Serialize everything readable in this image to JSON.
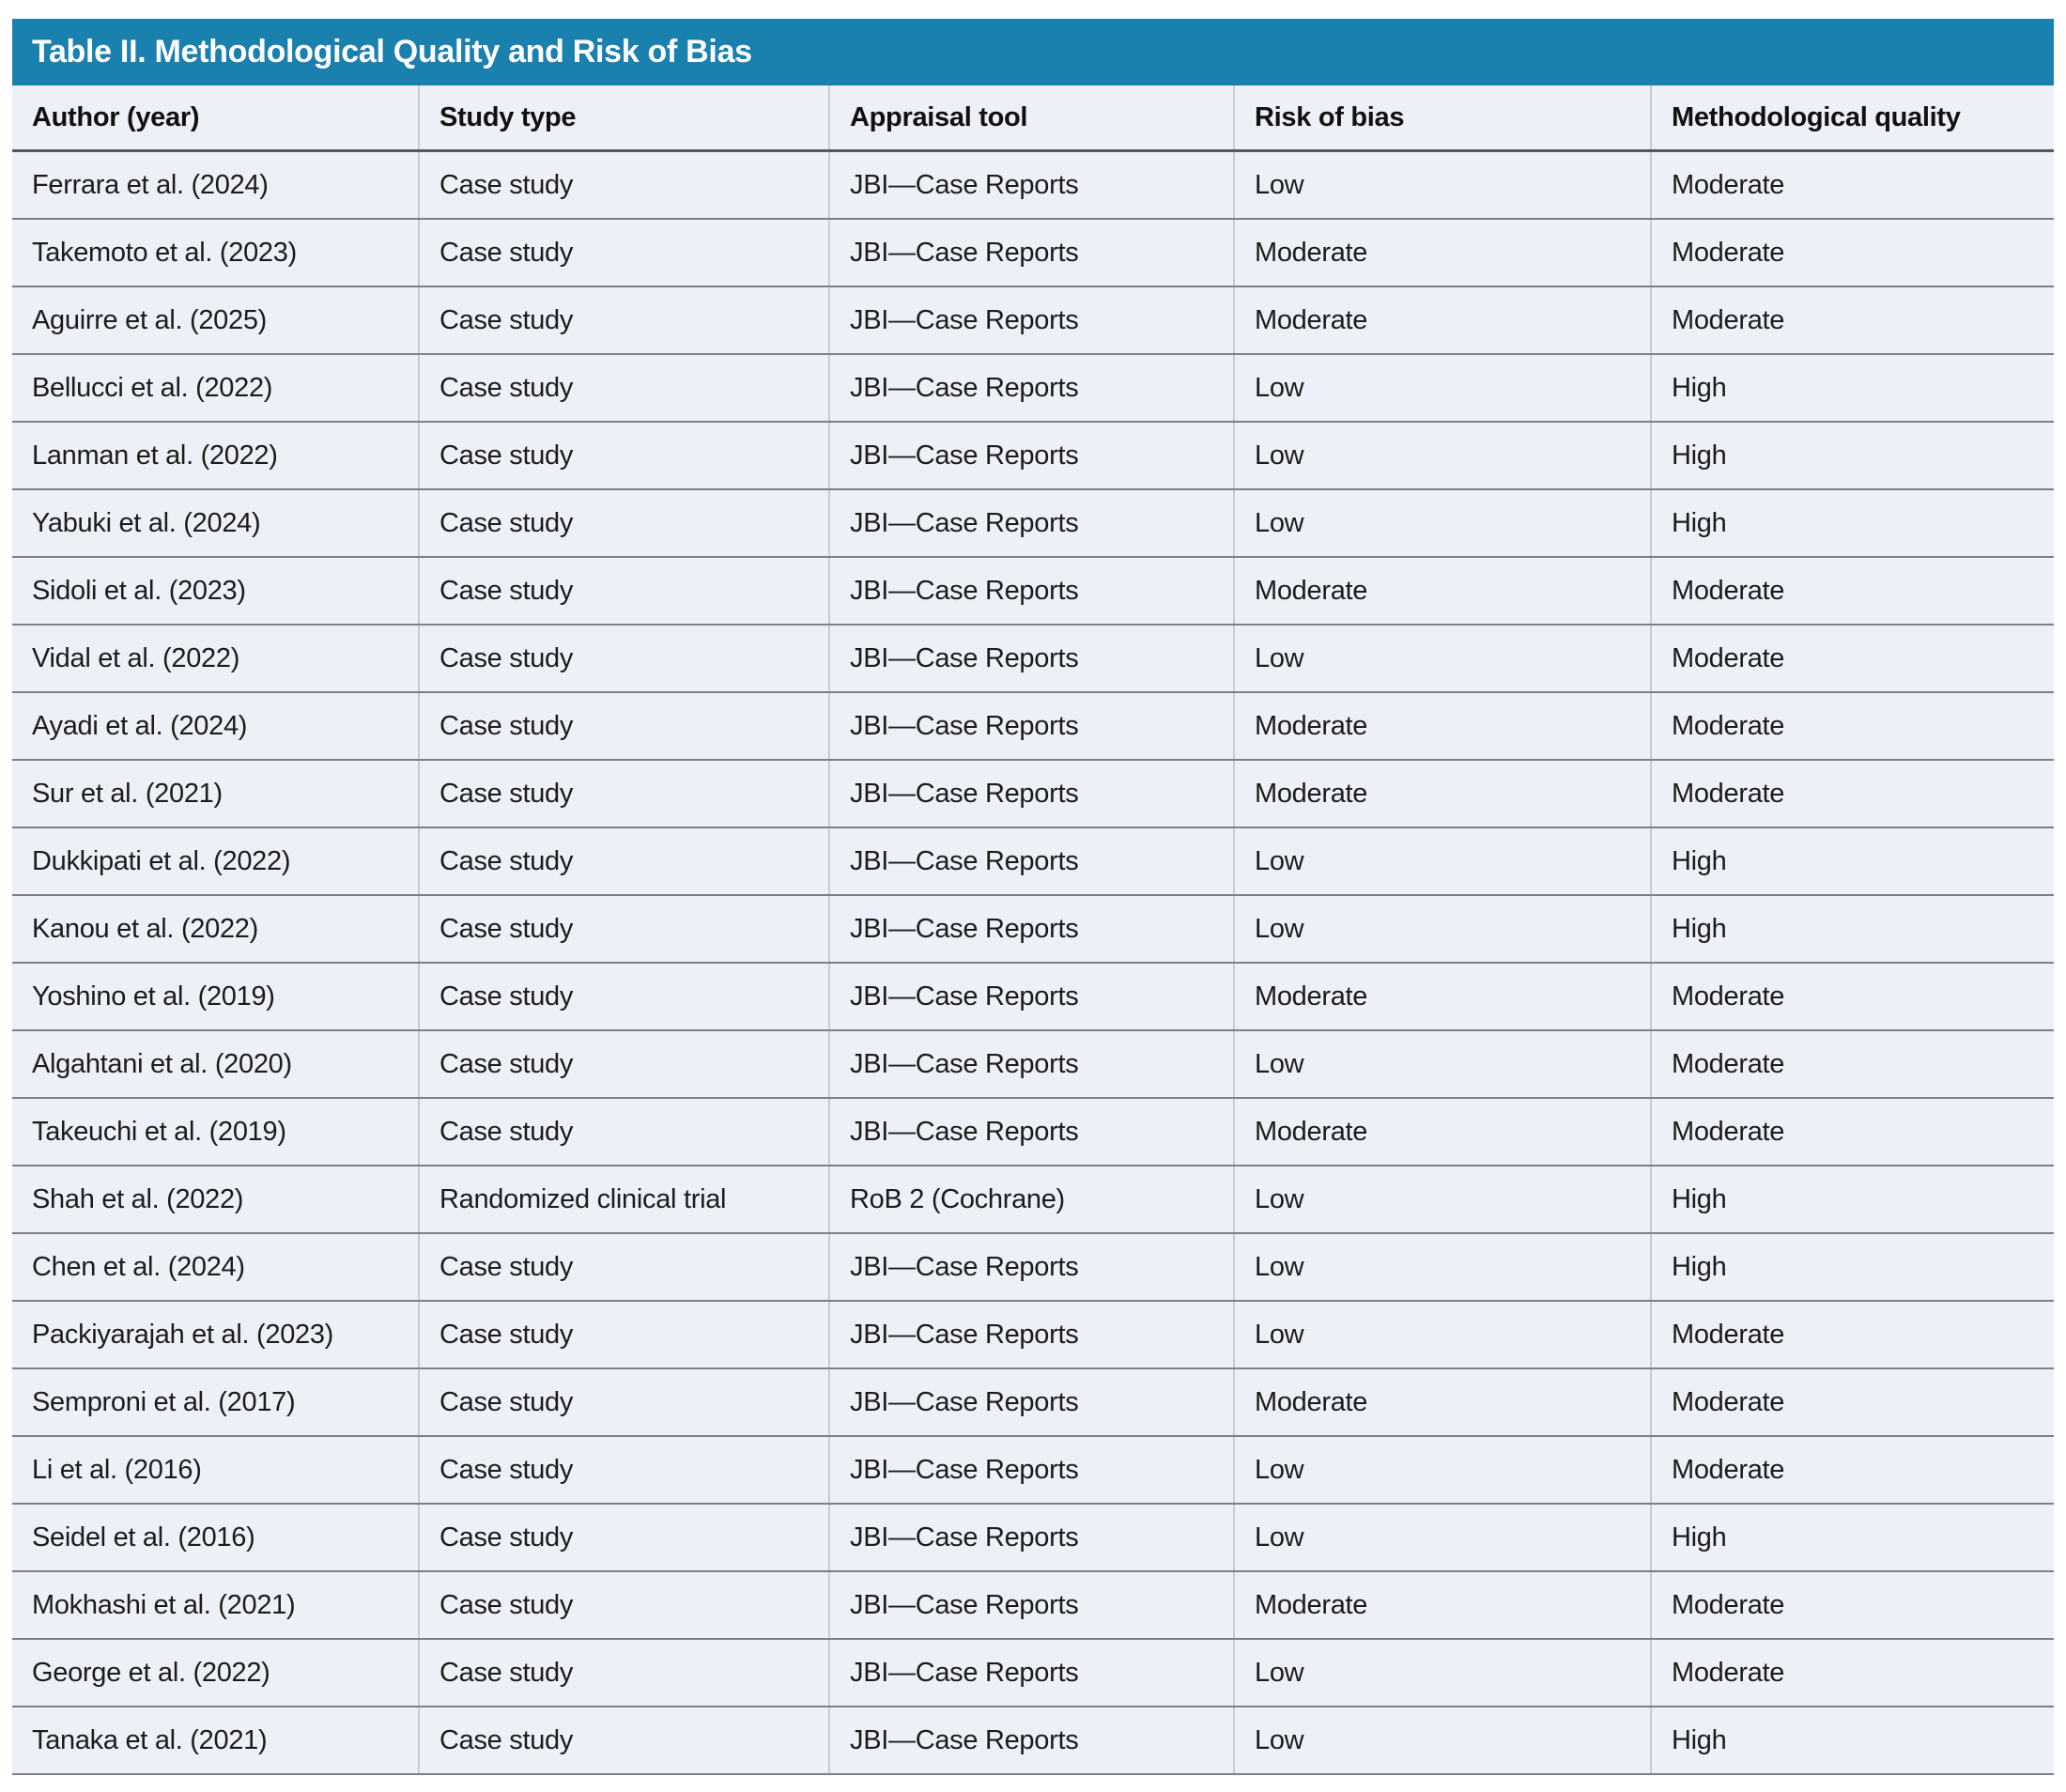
{
  "table": {
    "title": "Table II. Methodological Quality and Risk of Bias",
    "columns": [
      "Author (year)",
      "Study type",
      "Appraisal tool",
      "Risk of bias",
      "Methodological quality"
    ],
    "rows": [
      {
        "author": "Ferrara et al. (2024)",
        "study_type": "Case study",
        "appraisal_tool": "JBI—Case Reports",
        "risk_of_bias": "Low",
        "methodological_quality": "Moderate"
      },
      {
        "author": "Takemoto et al. (2023)",
        "study_type": "Case study",
        "appraisal_tool": "JBI—Case Reports",
        "risk_of_bias": "Moderate",
        "methodological_quality": "Moderate"
      },
      {
        "author": "Aguirre et al. (2025)",
        "study_type": "Case study",
        "appraisal_tool": "JBI—Case Reports",
        "risk_of_bias": "Moderate",
        "methodological_quality": "Moderate"
      },
      {
        "author": "Bellucci et al. (2022)",
        "study_type": "Case study",
        "appraisal_tool": "JBI—Case Reports",
        "risk_of_bias": "Low",
        "methodological_quality": "High"
      },
      {
        "author": "Lanman et al. (2022)",
        "study_type": "Case study",
        "appraisal_tool": "JBI—Case Reports",
        "risk_of_bias": "Low",
        "methodological_quality": "High"
      },
      {
        "author": "Yabuki et al. (2024)",
        "study_type": "Case study",
        "appraisal_tool": "JBI—Case Reports",
        "risk_of_bias": "Low",
        "methodological_quality": "High"
      },
      {
        "author": "Sidoli et al. (2023)",
        "study_type": "Case study",
        "appraisal_tool": "JBI—Case Reports",
        "risk_of_bias": "Moderate",
        "methodological_quality": "Moderate"
      },
      {
        "author": "Vidal et al. (2022)",
        "study_type": "Case study",
        "appraisal_tool": "JBI—Case Reports",
        "risk_of_bias": "Low",
        "methodological_quality": "Moderate"
      },
      {
        "author": "Ayadi et al. (2024)",
        "study_type": "Case study",
        "appraisal_tool": "JBI—Case Reports",
        "risk_of_bias": "Moderate",
        "methodological_quality": "Moderate"
      },
      {
        "author": "Sur et al. (2021)",
        "study_type": "Case study",
        "appraisal_tool": "JBI—Case Reports",
        "risk_of_bias": "Moderate",
        "methodological_quality": "Moderate"
      },
      {
        "author": "Dukkipati et al. (2022)",
        "study_type": "Case study",
        "appraisal_tool": "JBI—Case Reports",
        "risk_of_bias": "Low",
        "methodological_quality": "High"
      },
      {
        "author": "Kanou et al. (2022)",
        "study_type": "Case study",
        "appraisal_tool": "JBI—Case Reports",
        "risk_of_bias": "Low",
        "methodological_quality": "High"
      },
      {
        "author": "Yoshino et al. (2019)",
        "study_type": "Case study",
        "appraisal_tool": "JBI—Case Reports",
        "risk_of_bias": "Moderate",
        "methodological_quality": "Moderate"
      },
      {
        "author": "Algahtani et al. (2020)",
        "study_type": "Case study",
        "appraisal_tool": "JBI—Case Reports",
        "risk_of_bias": "Low",
        "methodological_quality": "Moderate"
      },
      {
        "author": "Takeuchi et al. (2019)",
        "study_type": "Case study",
        "appraisal_tool": "JBI—Case Reports",
        "risk_of_bias": "Moderate",
        "methodological_quality": "Moderate"
      },
      {
        "author": "Shah et al. (2022)",
        "study_type": "Randomized clinical trial",
        "appraisal_tool": "RoB 2 (Cochrane)",
        "risk_of_bias": "Low",
        "methodological_quality": "High"
      },
      {
        "author": "Chen et al. (2024)",
        "study_type": "Case study",
        "appraisal_tool": "JBI—Case Reports",
        "risk_of_bias": "Low",
        "methodological_quality": "High"
      },
      {
        "author": "Packiyarajah et al. (2023)",
        "study_type": "Case study",
        "appraisal_tool": "JBI—Case Reports",
        "risk_of_bias": "Low",
        "methodological_quality": "Moderate"
      },
      {
        "author": "Semproni et al. (2017)",
        "study_type": "Case study",
        "appraisal_tool": "JBI—Case Reports",
        "risk_of_bias": "Moderate",
        "methodological_quality": "Moderate"
      },
      {
        "author": "Li et al. (2016)",
        "study_type": "Case study",
        "appraisal_tool": "JBI—Case Reports",
        "risk_of_bias": "Low",
        "methodological_quality": "Moderate"
      },
      {
        "author": "Seidel et al. (2016)",
        "study_type": "Case study",
        "appraisal_tool": "JBI—Case Reports",
        "risk_of_bias": "Low",
        "methodological_quality": "High"
      },
      {
        "author": "Mokhashi et al. (2021)",
        "study_type": "Case study",
        "appraisal_tool": "JBI—Case Reports",
        "risk_of_bias": "Moderate",
        "methodological_quality": "Moderate"
      },
      {
        "author": "George et al. (2022)",
        "study_type": "Case study",
        "appraisal_tool": "JBI—Case Reports",
        "risk_of_bias": "Low",
        "methodological_quality": "Moderate"
      },
      {
        "author": "Tanaka et al. (2021)",
        "study_type": "Case study",
        "appraisal_tool": "JBI—Case Reports",
        "risk_of_bias": "Low",
        "methodological_quality": "High"
      }
    ]
  },
  "colors": {
    "title_bar_bg": "#1a80ae",
    "title_text": "#ffffff",
    "row_bg": "#edf0f7",
    "header_rule": "#55585c",
    "row_rule": "#7d8084",
    "column_rule": "#c7cbd4",
    "body_text": "#1c1c1c"
  }
}
